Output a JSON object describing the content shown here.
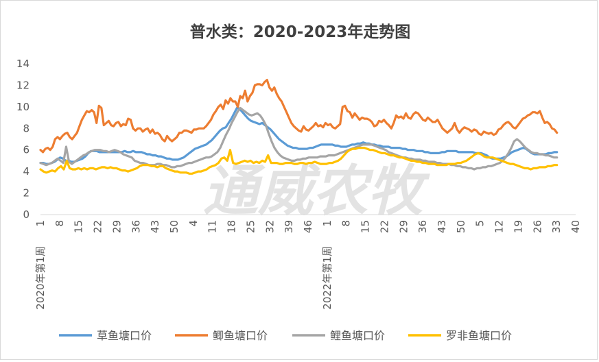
{
  "chart_data": {
    "type": "line",
    "title": "普水类：2020-2023年走势图",
    "watermark": "通威农牧",
    "ylim": [
      0,
      14
    ],
    "yticks": [
      "0",
      "2",
      "4",
      "6",
      "8",
      "10",
      "12",
      "14"
    ],
    "xticks": [
      "1",
      "8",
      "15",
      "22",
      "29",
      "36",
      "43",
      "50",
      "4",
      "11",
      "18",
      "25",
      "32",
      "39",
      "46",
      "1",
      "8",
      "15",
      "22",
      "29",
      "36",
      "43",
      "50",
      "5",
      "12",
      "19",
      "26",
      "33",
      "40"
    ],
    "year_labels": [
      {
        "text": "2020年第1周",
        "tick_index": 0
      },
      {
        "text": "2022年第1周",
        "tick_index": 15
      }
    ],
    "grid": true,
    "legend_position": "bottom",
    "series": [
      {
        "name": "草鱼塘口价",
        "color": "#5b9bd5",
        "values": [
          4.8,
          4.8,
          4.7,
          4.7,
          4.8,
          4.9,
          5.1,
          5.3,
          5.2,
          5.0,
          5.0,
          4.9,
          4.9,
          5.0,
          5.1,
          5.2,
          5.4,
          5.7,
          5.9,
          5.9,
          5.9,
          5.8,
          5.8,
          5.8,
          5.8,
          5.8,
          5.8,
          5.8,
          5.8,
          5.8,
          5.9,
          5.8,
          5.8,
          5.9,
          5.8,
          5.8,
          5.8,
          5.7,
          5.6,
          5.6,
          5.5,
          5.5,
          5.4,
          5.4,
          5.3,
          5.2,
          5.2,
          5.1,
          5.1,
          5.1,
          5.2,
          5.3,
          5.5,
          5.7,
          5.9,
          6.1,
          6.2,
          6.3,
          6.4,
          6.5,
          6.7,
          6.9,
          7.2,
          7.5,
          7.8,
          8.0,
          8.1,
          8.5,
          8.9,
          9.4,
          9.9,
          9.8,
          9.5,
          9.2,
          8.9,
          8.7,
          8.6,
          8.5,
          8.4,
          8.5,
          8.3,
          8.1,
          7.9,
          7.6,
          7.3,
          7.0,
          6.8,
          6.6,
          6.4,
          6.3,
          6.2,
          6.2,
          6.1,
          6.1,
          6.1,
          6.1,
          6.2,
          6.2,
          6.3,
          6.4,
          6.5,
          6.5,
          6.5,
          6.5,
          6.5,
          6.4,
          6.4,
          6.3,
          6.3,
          6.3,
          6.4,
          6.5,
          6.5,
          6.6,
          6.6,
          6.7,
          6.6,
          6.6,
          6.5,
          6.5,
          6.4,
          6.4,
          6.3,
          6.3,
          6.3,
          6.2,
          6.2,
          6.2,
          6.2,
          6.1,
          6.1,
          6.0,
          6.0,
          6.0,
          5.9,
          5.9,
          5.9,
          5.8,
          5.8,
          5.7,
          5.7,
          5.7,
          5.7,
          5.8,
          5.8,
          5.9,
          5.9,
          5.9,
          5.9,
          5.8,
          5.8,
          5.8,
          5.8,
          5.8,
          5.8,
          5.7,
          5.7,
          5.7,
          5.6,
          5.5,
          5.3,
          5.2,
          5.2,
          5.2,
          5.2,
          5.3,
          5.4,
          5.6,
          5.8,
          5.9,
          6.0,
          6.1,
          6.2,
          6.1,
          5.9,
          5.7,
          5.6,
          5.6,
          5.6,
          5.6,
          5.6,
          5.7,
          5.7,
          5.8,
          5.8
        ]
      },
      {
        "name": "鲫鱼塘口价",
        "color": "#ed7d31",
        "values": [
          6.0,
          5.8,
          6.1,
          6.2,
          6.0,
          6.3,
          7.0,
          7.2,
          7.0,
          7.3,
          7.5,
          7.6,
          7.2,
          7.0,
          7.3,
          7.6,
          8.2,
          8.8,
          9.2,
          9.6,
          9.5,
          9.7,
          9.5,
          8.5,
          10.1,
          9.9,
          8.3,
          8.5,
          8.7,
          8.3,
          8.2,
          8.5,
          8.6,
          8.2,
          8.4,
          8.3,
          8.9,
          8.8,
          8.0,
          7.8,
          8.0,
          8.0,
          7.7,
          7.9,
          8.0,
          7.6,
          7.9,
          7.5,
          7.6,
          7.4,
          7.0,
          6.8,
          7.3,
          7.0,
          6.8,
          7.0,
          7.2,
          7.6,
          7.6,
          7.8,
          7.8,
          7.7,
          7.6,
          7.9,
          7.9,
          8.0,
          8.0,
          8.0,
          8.2,
          8.5,
          8.8,
          9.3,
          9.6,
          10.0,
          10.2,
          9.8,
          10.6,
          10.3,
          10.8,
          10.5,
          10.5,
          10.0,
          11.0,
          10.8,
          11.5,
          10.5,
          11.0,
          11.3,
          12.0,
          12.1,
          12.1,
          12.0,
          12.3,
          12.5,
          11.8,
          11.5,
          11.8,
          11.2,
          10.8,
          10.5,
          10.0,
          9.5,
          9.0,
          8.5,
          8.2,
          8.0,
          7.8,
          7.7,
          8.2,
          7.9,
          7.8,
          8.0,
          8.2,
          8.5,
          8.2,
          8.3,
          8.1,
          8.5,
          8.3,
          8.4,
          8.1,
          8.0,
          8.2,
          8.4,
          10.0,
          10.1,
          9.6,
          9.5,
          9.0,
          9.4,
          9.1,
          8.8,
          9.0,
          8.9,
          8.9,
          8.8,
          8.6,
          8.2,
          8.3,
          8.7,
          8.6,
          8.8,
          8.5,
          8.3,
          8.0,
          8.5,
          9.2,
          9.0,
          9.1,
          8.9,
          9.4,
          9.0,
          8.9,
          9.3,
          9.5,
          9.4,
          9.1,
          8.8,
          8.7,
          9.0,
          8.8,
          8.6,
          8.6,
          8.8,
          8.4,
          8.0,
          7.8,
          7.6,
          7.8,
          8.0,
          8.5,
          7.9,
          7.6,
          7.9,
          8.1,
          8.0,
          7.9,
          7.7,
          7.9,
          7.8,
          7.5,
          7.4,
          7.7,
          7.6,
          7.5,
          7.6,
          7.4,
          7.5,
          7.9,
          8.0,
          8.3,
          8.5,
          8.6,
          8.4,
          8.1,
          8.0,
          8.3,
          8.6,
          8.9,
          9.0,
          9.2,
          9.3,
          9.5,
          9.5,
          9.4,
          9.6,
          9.0,
          8.5,
          8.6,
          8.4,
          8.0,
          7.9,
          7.6
        ]
      },
      {
        "name": "鲤鱼塘口价",
        "color": "#a5a5a5",
        "values": [
          4.8,
          4.7,
          4.6,
          4.7,
          4.8,
          5.0,
          5.2,
          5.0,
          4.8,
          6.3,
          4.9,
          4.7,
          4.9,
          5.1,
          5.3,
          5.5,
          5.6,
          5.8,
          5.9,
          6.0,
          6.0,
          6.0,
          5.9,
          5.9,
          5.8,
          5.9,
          6.0,
          5.9,
          5.8,
          5.6,
          5.5,
          5.4,
          5.3,
          5.0,
          4.9,
          4.8,
          4.8,
          4.7,
          4.6,
          4.6,
          4.6,
          4.7,
          4.7,
          4.6,
          4.6,
          4.5,
          4.4,
          4.4,
          4.5,
          4.5,
          4.6,
          4.7,
          4.8,
          4.8,
          4.9,
          5.0,
          5.1,
          5.2,
          5.3,
          5.3,
          5.4,
          5.6,
          5.8,
          6.2,
          6.8,
          7.4,
          7.9,
          8.5,
          9.0,
          9.5,
          9.9,
          9.7,
          9.5,
          9.3,
          9.2,
          9.3,
          9.4,
          9.2,
          8.8,
          8.3,
          7.5,
          6.8,
          6.2,
          5.8,
          5.5,
          5.3,
          5.2,
          5.1,
          5.0,
          5.0,
          5.1,
          5.1,
          5.2,
          5.2,
          5.3,
          5.3,
          5.3,
          5.3,
          5.4,
          5.4,
          5.4,
          5.5,
          5.5,
          5.5,
          5.6,
          5.7,
          5.8,
          5.9,
          6.0,
          6.1,
          6.2,
          6.3,
          6.4,
          6.5,
          6.5,
          6.5,
          6.5,
          6.4,
          6.3,
          6.2,
          6.1,
          6.0,
          5.8,
          5.7,
          5.6,
          5.5,
          5.4,
          5.3,
          5.3,
          5.2,
          5.2,
          5.1,
          5.1,
          5.1,
          5.0,
          5.0,
          4.9,
          4.9,
          4.9,
          4.8,
          4.8,
          4.7,
          4.7,
          4.7,
          4.6,
          4.6,
          4.5,
          4.5,
          4.4,
          4.4,
          4.3,
          4.3,
          4.2,
          4.3,
          4.3,
          4.4,
          4.4,
          4.5,
          4.5,
          4.6,
          4.7,
          4.8,
          5.0,
          5.3,
          5.7,
          6.2,
          6.8,
          7.0,
          6.8,
          6.5,
          6.2,
          6.0,
          5.8,
          5.7,
          5.7,
          5.6,
          5.6,
          5.5,
          5.5,
          5.4,
          5.3,
          5.3
        ]
      },
      {
        "name": "罗非鱼塘口价",
        "color": "#ffc000",
        "values": [
          4.2,
          4.0,
          3.9,
          4.0,
          4.1,
          4.0,
          4.3,
          4.5,
          4.2,
          5.0,
          4.3,
          4.2,
          4.2,
          4.3,
          4.2,
          4.3,
          4.2,
          4.3,
          4.3,
          4.2,
          4.3,
          4.4,
          4.4,
          4.3,
          4.4,
          4.3,
          4.3,
          4.2,
          4.1,
          4.1,
          4.0,
          4.1,
          4.2,
          4.3,
          4.5,
          4.6,
          4.6,
          4.6,
          4.5,
          4.5,
          4.4,
          4.5,
          4.5,
          4.3,
          4.2,
          4.1,
          4.0,
          4.0,
          3.9,
          3.9,
          3.9,
          3.8,
          3.8,
          3.9,
          4.0,
          4.0,
          4.1,
          4.2,
          4.4,
          4.5,
          4.6,
          4.8,
          5.2,
          5.3,
          5.0,
          6.0,
          4.8,
          4.7,
          4.8,
          4.9,
          5.0,
          4.9,
          5.0,
          4.8,
          4.9,
          4.8,
          5.0,
          4.9,
          5.5,
          4.8,
          4.8,
          4.8,
          4.7,
          4.7,
          4.8,
          4.8,
          4.8,
          4.7,
          4.7,
          4.8,
          4.8,
          4.7,
          4.8,
          4.8,
          4.9,
          4.8,
          4.7,
          4.7,
          4.7,
          4.8,
          4.8,
          4.9,
          5.0,
          5.2,
          5.5,
          5.8,
          6.0,
          6.1,
          6.1,
          6.2,
          6.2,
          6.2,
          6.1,
          6.0,
          6.0,
          5.9,
          5.8,
          5.7,
          5.7,
          5.6,
          5.5,
          5.5,
          5.4,
          5.3,
          5.3,
          5.2,
          5.1,
          5.0,
          5.0,
          4.9,
          4.9,
          4.8,
          4.8,
          4.7,
          4.7,
          4.7,
          4.6,
          4.6,
          4.6,
          4.6,
          4.7,
          4.7,
          4.7,
          4.8,
          4.8,
          4.9,
          5.0,
          5.2,
          5.4,
          5.6,
          5.7,
          5.6,
          5.4,
          5.3,
          5.3,
          5.3,
          5.2,
          5.1,
          5.0,
          4.9,
          4.8,
          4.7,
          4.7,
          4.6,
          4.5,
          4.4,
          4.3,
          4.3,
          4.2,
          4.3,
          4.3,
          4.4,
          4.4,
          4.4,
          4.5,
          4.5,
          4.6,
          4.6
        ]
      }
    ]
  }
}
